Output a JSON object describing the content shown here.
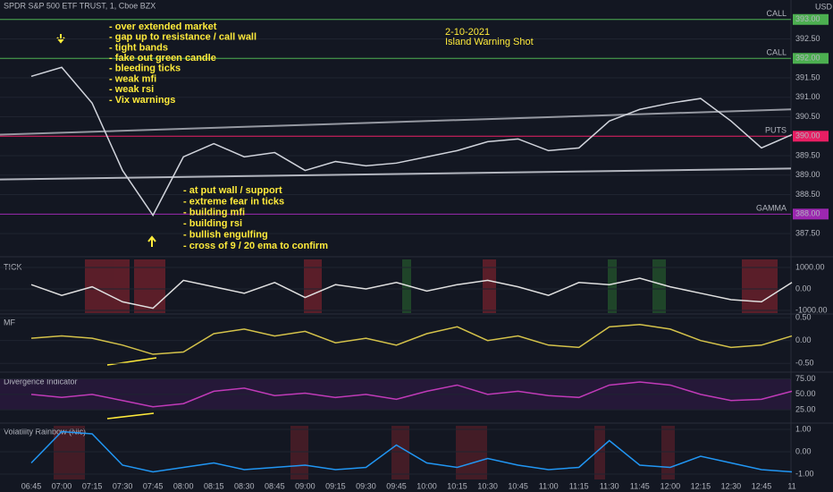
{
  "chart_data": [
    {
      "type": "line",
      "title": "SPDR S&P 500 ETF TRUST, 1, Cboe BZX",
      "unit": "USD",
      "categories": [
        "06:45",
        "07:00",
        "07:15",
        "07:30",
        "07:45",
        "08:00",
        "08:15",
        "08:30",
        "08:45",
        "09:00",
        "09:15",
        "09:30",
        "09:45",
        "10:00",
        "10:15",
        "10:30",
        "10:45",
        "11:00",
        "11:15",
        "11:30",
        "11:45",
        "12:00",
        "12:15",
        "12:30",
        "12:45",
        "11"
      ],
      "values": [
        391.54,
        391.77,
        390.85,
        389.12,
        387.97,
        389.47,
        389.81,
        389.47,
        389.58,
        389.12,
        389.35,
        389.24,
        389.31,
        389.47,
        389.63,
        389.86,
        389.93,
        389.63,
        389.7,
        390.39,
        390.69,
        390.85,
        390.97,
        390.39,
        389.7,
        390.04
      ],
      "color": "#d1d4dc",
      "ylim": [
        386.95,
        393.5
      ],
      "yticks": [
        {
          "value": 393,
          "label": "393.00"
        },
        {
          "value": 392.5,
          "label": "392.50"
        },
        {
          "value": 392,
          "label": "392.00"
        },
        {
          "value": 391.5,
          "label": "391.50"
        },
        {
          "value": 391,
          "label": "391.00"
        },
        {
          "value": 390.5,
          "label": "390.50"
        },
        {
          "value": 390,
          "label": "390.00"
        },
        {
          "value": 389.5,
          "label": "389.50"
        },
        {
          "value": 389,
          "label": "389.00"
        },
        {
          "value": 388.5,
          "label": "388.50"
        },
        {
          "value": 388,
          "label": "388.00"
        },
        {
          "value": 387.5,
          "label": "387.50"
        }
      ],
      "grid": true,
      "levels": [
        {
          "name": "CALL",
          "value": 393,
          "color": "#4caf50"
        },
        {
          "name": "CALL",
          "value": 392,
          "color": "#4caf50"
        },
        {
          "name": "PUTS",
          "value": 390,
          "color": "#e91e63"
        },
        {
          "name": "GAMMA",
          "value": 388,
          "color": "#9c27b0"
        }
      ],
      "trendlines": [
        {
          "start": 390.04,
          "end": 390.69,
          "color": "#9598a1"
        },
        {
          "start": 388.89,
          "end": 389.17,
          "color": "#b2b5be"
        }
      ],
      "annotations": {
        "date": "2-10-2021",
        "headline": "Island Warning Shot",
        "notes_top": [
          "- over extended market",
          "- gap up to resistance / call wall",
          "- tight bands",
          "- fake out green candle",
          "- bleeding ticks",
          "- weak mfi",
          "- weak rsi",
          "- Vix warnings"
        ],
        "notes_bottom": [
          "- at put wall / support",
          "- extreme fear in ticks",
          "- building mfi",
          "- building rsi",
          "- bullish engulfing",
          "- cross of 9 / 20 ema to confirm"
        ]
      }
    },
    {
      "type": "line",
      "title": "TICK",
      "color": "#e0e0e0",
      "values": [
        200,
        -300,
        100,
        -600,
        -900,
        400,
        100,
        -200,
        300,
        -400,
        200,
        0,
        300,
        -100,
        200,
        400,
        100,
        -300,
        300,
        200,
        500,
        100,
        -200,
        -500,
        -600,
        300
      ],
      "ylim": [
        -1125,
        1375
      ],
      "yticks": [
        {
          "value": 1000,
          "label": "1000.00"
        },
        {
          "value": 0,
          "label": "0.00"
        },
        {
          "value": -1000,
          "label": "-1000.00"
        }
      ],
      "grid": true
    },
    {
      "type": "line",
      "title": "MF",
      "color": "#d4c24a",
      "values": [
        0.05,
        0.1,
        0.05,
        -0.1,
        -0.3,
        -0.25,
        0.15,
        0.25,
        0.1,
        0.2,
        -0.05,
        0.05,
        -0.1,
        0.15,
        0.3,
        0,
        0.1,
        -0.1,
        -0.15,
        0.3,
        0.35,
        0.25,
        0,
        -0.15,
        -0.1,
        0.1
      ],
      "ylim": [
        -0.67,
        0.56
      ],
      "yticks": [
        {
          "value": 0.5,
          "label": "0.50"
        },
        {
          "value": 0,
          "label": "0.00"
        },
        {
          "value": -0.5,
          "label": "-0.50"
        }
      ],
      "grid": true
    },
    {
      "type": "line",
      "title": "Divergence Indicator",
      "color": "#c03ab8",
      "values": [
        50,
        45,
        50,
        40,
        30,
        35,
        55,
        60,
        48,
        52,
        45,
        50,
        42,
        55,
        65,
        50,
        55,
        48,
        45,
        65,
        70,
        65,
        50,
        40,
        42,
        55
      ],
      "ylim": [
        5,
        83
      ],
      "yticks": [
        {
          "value": 75,
          "label": "75.00"
        },
        {
          "value": 50,
          "label": "50.00"
        },
        {
          "value": 25,
          "label": "25.00"
        }
      ],
      "grid": true
    },
    {
      "type": "line",
      "title": "Volatility Rainbow (Nic)",
      "color": "#2196f3",
      "values": [
        -0.5,
        0.9,
        0.8,
        -0.6,
        -0.9,
        -0.7,
        -0.5,
        -0.8,
        -0.7,
        -0.6,
        -0.8,
        -0.7,
        0.3,
        -0.5,
        -0.7,
        -0.3,
        -0.6,
        -0.8,
        -0.7,
        0.5,
        -0.6,
        -0.7,
        -0.2,
        -0.5,
        -0.8,
        -0.9
      ],
      "ylim": [
        -1.32,
        1.24
      ],
      "yticks": [
        {
          "value": 1,
          "label": "1.00"
        },
        {
          "value": 0,
          "label": "0.00"
        },
        {
          "value": -1,
          "label": "-1.00"
        }
      ],
      "grid": true
    }
  ]
}
